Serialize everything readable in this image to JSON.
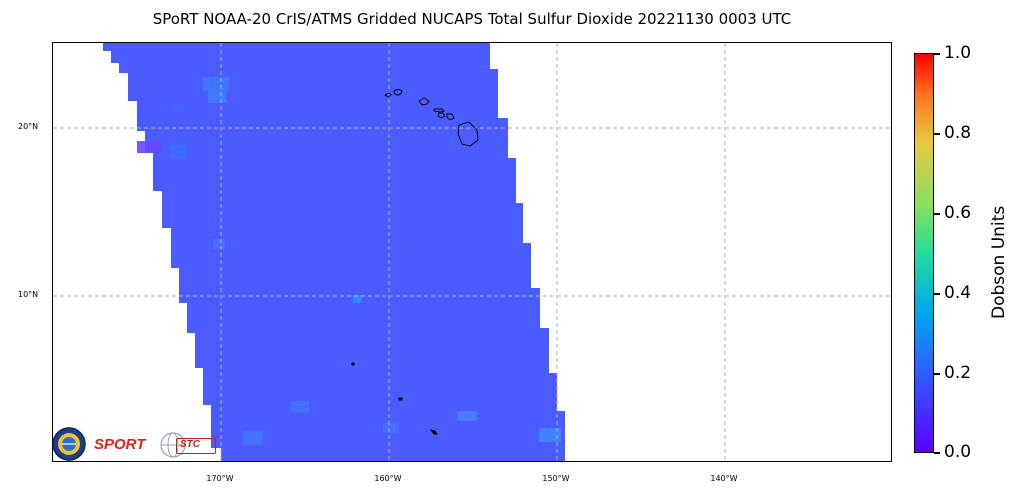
{
  "title": "SPoRT NOAA-20 CrIS/ATMS Gridded NUCAPS Total Sulfur Dioxide 20221130 0003 UTC",
  "map": {
    "lat_labels": [
      "20°N",
      "10°N"
    ],
    "lon_labels": [
      "170°W",
      "160°W",
      "150°W",
      "140°W"
    ],
    "swath_color": "#4a5cff",
    "background": "#ffffff",
    "gridline_color": "#b0b0b0"
  },
  "colorbar": {
    "label": "Dobson Units",
    "ticks": [
      "1.0",
      "0.8",
      "0.6",
      "0.4",
      "0.2",
      "0.0"
    ],
    "min": 0.0,
    "max": 1.0,
    "colormap": "rainbow"
  },
  "logos": {
    "sport": "SPORT",
    "stc": "STC",
    "nasa_icon": "nasa-seal-icon",
    "globe_icon": "globe-icon"
  }
}
